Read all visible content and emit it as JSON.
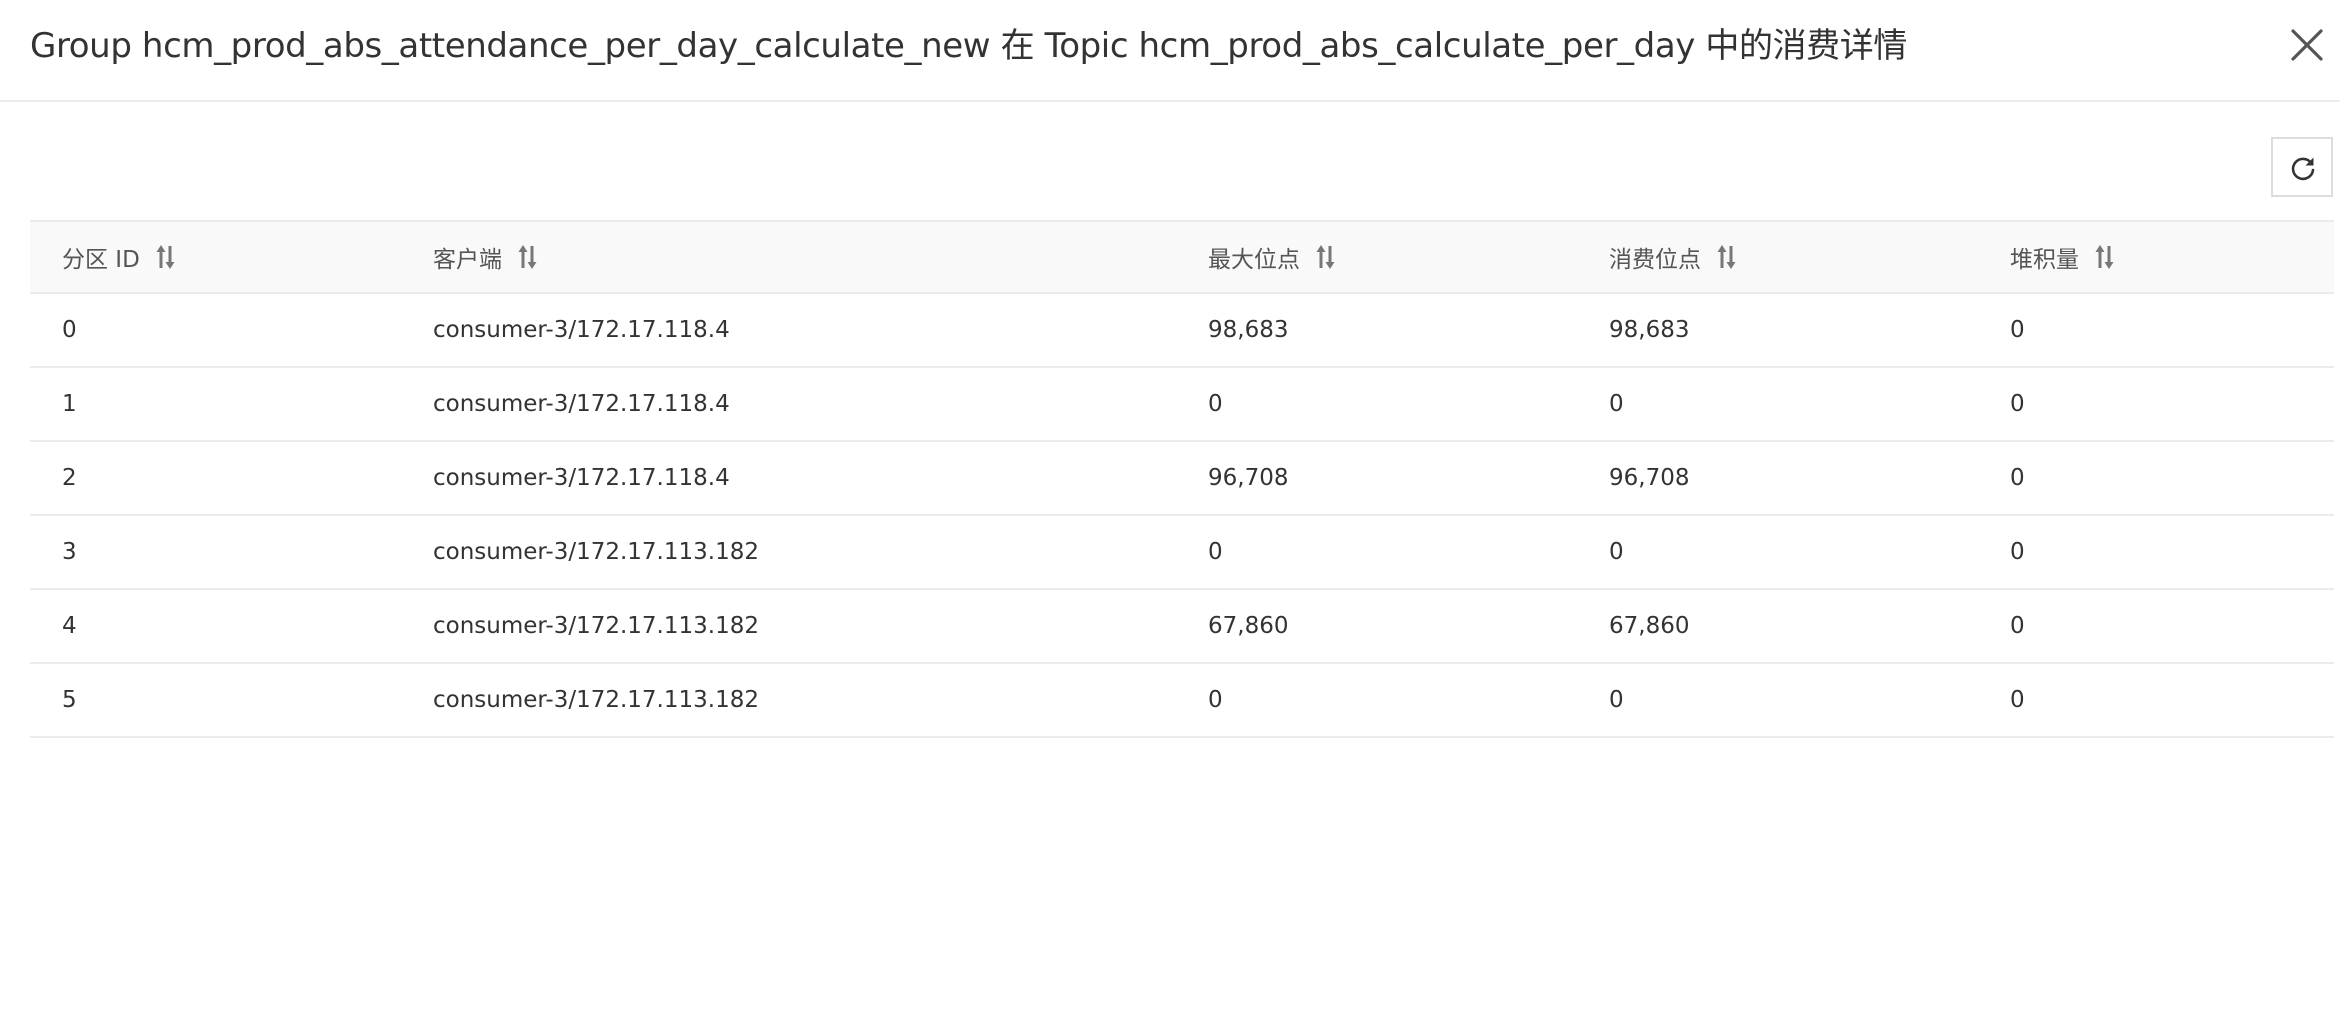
{
  "dialog": {
    "title": "Group hcm_prod_abs_attendance_per_day_calculate_new 在 Topic hcm_prod_abs_calculate_per_day 中的消费详情",
    "close_icon": "close-icon",
    "refresh_icon": "refresh-icon"
  },
  "table": {
    "columns": [
      {
        "label": "分区 ID",
        "sort_icon": "sort-icon"
      },
      {
        "label": "客户端",
        "sort_icon": "sort-icon"
      },
      {
        "label": "最大位点",
        "sort_icon": "sort-icon"
      },
      {
        "label": "消费位点",
        "sort_icon": "sort-icon"
      },
      {
        "label": "堆积量",
        "sort_icon": "sort-icon"
      }
    ],
    "rows": [
      [
        "0",
        "consumer-3/172.17.118.4",
        "98,683",
        "98,683",
        "0"
      ],
      [
        "1",
        "consumer-3/172.17.118.4",
        "0",
        "0",
        "0"
      ],
      [
        "2",
        "consumer-3/172.17.118.4",
        "96,708",
        "96,708",
        "0"
      ],
      [
        "3",
        "consumer-3/172.17.113.182",
        "0",
        "0",
        "0"
      ],
      [
        "4",
        "consumer-3/172.17.113.182",
        "67,860",
        "67,860",
        "0"
      ],
      [
        "5",
        "consumer-3/172.17.113.182",
        "0",
        "0",
        "0"
      ]
    ]
  }
}
